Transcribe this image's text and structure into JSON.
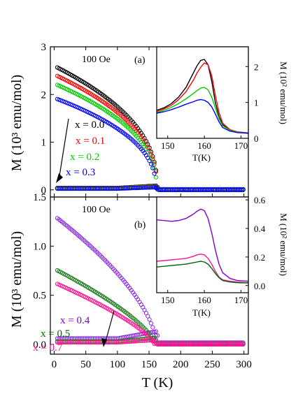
{
  "chart_data": [
    {
      "type": "scatter",
      "panel_label": "(a)",
      "field_label": "100 Oe",
      "ylabel": "M (10³ emu/mol)",
      "xlabel": "",
      "xlim": [
        -6,
        307
      ],
      "ylim": [
        -0.15,
        3
      ],
      "xticks": [
        0,
        50,
        100,
        150,
        200,
        250,
        300
      ],
      "yticks": [
        0,
        1,
        2,
        3
      ],
      "marker": "open-circle",
      "legend": [
        {
          "name": "x = 0.0",
          "color": "#000000"
        },
        {
          "name": "x = 0.1",
          "color": "#ff0000"
        },
        {
          "name": "x = 0.2",
          "color": "#00cc00"
        },
        {
          "name": "x = 0.3",
          "color": "#0000ff"
        }
      ],
      "series": [
        {
          "name": "x = 0.0",
          "color": "#000000",
          "M0": 2.6,
          "Tc": 163,
          "beta": 0.42,
          "zfc_level": 0.04
        },
        {
          "name": "x = 0.1",
          "color": "#ff0000",
          "M0": 2.42,
          "Tc": 163,
          "beta": 0.42,
          "zfc_level": 0.035
        },
        {
          "name": "x = 0.2",
          "color": "#00cc00",
          "M0": 2.23,
          "Tc": 162,
          "beta": 0.42,
          "zfc_level": 0.03
        },
        {
          "name": "x = 0.3",
          "color": "#0000ff",
          "M0": 1.93,
          "Tc": 161,
          "beta": 0.42,
          "zfc_level": 0.025
        }
      ],
      "inset": {
        "xlabel": "T(K)",
        "ylabel": "M (10² emu/mol)",
        "xlim": [
          147,
          172
        ],
        "ylim": [
          0,
          2.55
        ],
        "xticks": [
          150,
          160,
          170
        ],
        "yticks": [
          0,
          1,
          2
        ],
        "series": [
          {
            "color": "#000000",
            "x": [
              147,
              149,
              151,
              153,
              155,
              157,
              158,
              159,
              160,
              161,
              162,
              163,
              164,
              165,
              167,
              169,
              172
            ],
            "y": [
              0.78,
              0.85,
              0.97,
              1.15,
              1.42,
              1.82,
              2.02,
              2.17,
              2.2,
              2.05,
              1.6,
              1.0,
              0.6,
              0.38,
              0.24,
              0.18,
              0.15
            ]
          },
          {
            "color": "#ff0000",
            "x": [
              147,
              149,
              151,
              153,
              155,
              157,
              158,
              159,
              160,
              161,
              162,
              163,
              164,
              165,
              167,
              169,
              172
            ],
            "y": [
              0.75,
              0.82,
              0.92,
              1.08,
              1.3,
              1.62,
              1.82,
              1.98,
              2.1,
              2.05,
              1.75,
              1.2,
              0.72,
              0.42,
              0.24,
              0.18,
              0.15
            ]
          },
          {
            "color": "#00cc00",
            "x": [
              147,
              149,
              151,
              153,
              155,
              157,
              158,
              159,
              160,
              161,
              162,
              163,
              164,
              165,
              167,
              169,
              172
            ],
            "y": [
              0.72,
              0.78,
              0.86,
              0.97,
              1.1,
              1.25,
              1.33,
              1.4,
              1.42,
              1.35,
              1.15,
              0.85,
              0.55,
              0.35,
              0.22,
              0.17,
              0.14
            ]
          },
          {
            "color": "#0000ff",
            "x": [
              147,
              149,
              151,
              153,
              155,
              157,
              158,
              159,
              160,
              161,
              162,
              163,
              164,
              165,
              167,
              169,
              172
            ],
            "y": [
              0.7,
              0.74,
              0.8,
              0.87,
              0.95,
              1.02,
              1.06,
              1.08,
              1.06,
              1.0,
              0.88,
              0.68,
              0.46,
              0.3,
              0.2,
              0.16,
              0.14
            ]
          }
        ]
      }
    },
    {
      "type": "scatter",
      "panel_label": "(b)",
      "field_label": "100 Oe",
      "ylabel": "M (10³ emu/mol)",
      "xlabel": "T (K)",
      "xlim": [
        -6,
        307
      ],
      "ylim": [
        -0.1,
        1.5
      ],
      "xticks": [
        0,
        50,
        100,
        150,
        200,
        250,
        300
      ],
      "yticks": [
        0.0,
        0.5,
        1.0,
        1.5
      ],
      "yticklabels": [
        "0.0",
        "0.5",
        "1.0",
        "1.5"
      ],
      "marker": "open-circle",
      "legend": [
        {
          "name": "x = 0.4",
          "color": "#8000cc"
        },
        {
          "name": "x = 0.5",
          "color": "#006400"
        },
        {
          "name": "x = 0.7",
          "color": "#ff1493"
        }
      ],
      "series": [
        {
          "name": "x = 0.4",
          "color": "#8a2be2",
          "M0": 1.31,
          "Tc": 162,
          "beta": 0.62,
          "zfc_level": 0.06
        },
        {
          "name": "x = 0.5",
          "color": "#1e7b1e",
          "M0": 0.77,
          "Tc": 160,
          "beta": 0.7,
          "zfc_level": 0.03
        },
        {
          "name": "x = 0.7",
          "color": "#ff1493",
          "M0": 0.63,
          "Tc": 158,
          "beta": 0.72,
          "zfc_level": 0.02
        }
      ],
      "inset": {
        "xlabel": "T(K)",
        "ylabel": "M (10² emu/mol)",
        "xlim": [
          147,
          172
        ],
        "ylim": [
          -0.05,
          0.62
        ],
        "xticks": [
          150,
          160,
          170
        ],
        "yticks": [
          0.0,
          0.2,
          0.4,
          0.6
        ],
        "yticklabels": [
          "0.0",
          "0.2",
          "0.4",
          "0.6"
        ],
        "series": [
          {
            "color": "#8000cc",
            "x": [
              147,
              149,
              151,
              153,
              155,
              157,
              158,
              159,
              160,
              161,
              162,
              163,
              164,
              165,
              167,
              169,
              172
            ],
            "y": [
              0.46,
              0.455,
              0.45,
              0.455,
              0.47,
              0.5,
              0.52,
              0.535,
              0.525,
              0.47,
              0.37,
              0.25,
              0.15,
              0.09,
              0.05,
              0.035,
              0.03
            ]
          },
          {
            "color": "#ff1493",
            "x": [
              147,
              149,
              151,
              153,
              155,
              157,
              158,
              159,
              160,
              161,
              162,
              163,
              164,
              165,
              167,
              169,
              172
            ],
            "y": [
              0.17,
              0.175,
              0.18,
              0.185,
              0.19,
              0.205,
              0.215,
              0.22,
              0.215,
              0.19,
              0.15,
              0.1,
              0.06,
              0.04,
              0.03,
              0.025,
              0.02
            ]
          },
          {
            "color": "#006400",
            "x": [
              147,
              149,
              151,
              153,
              155,
              157,
              158,
              159,
              160,
              161,
              162,
              163,
              164,
              165,
              167,
              169,
              172
            ],
            "y": [
              0.13,
              0.135,
              0.14,
              0.145,
              0.15,
              0.16,
              0.165,
              0.17,
              0.165,
              0.15,
              0.12,
              0.085,
              0.055,
              0.035,
              0.025,
              0.02,
              0.018
            ]
          }
        ]
      }
    }
  ]
}
